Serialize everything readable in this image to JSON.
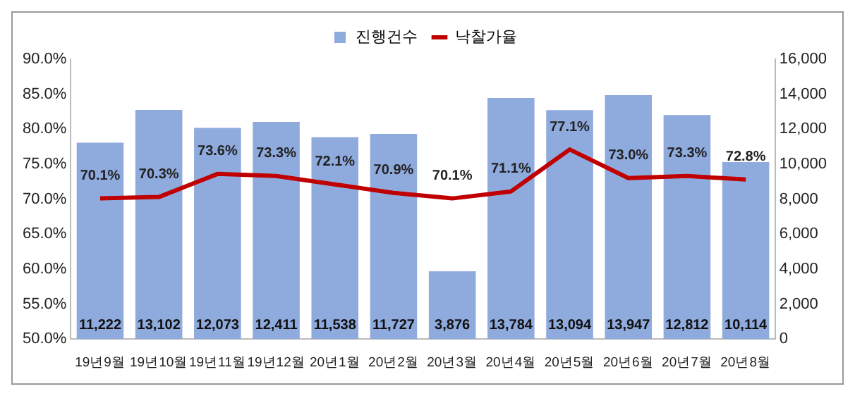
{
  "chart_data": {
    "type": "bar",
    "categories": [
      "19년9월",
      "19년10월",
      "19년11월",
      "19년12월",
      "20년1월",
      "20년2월",
      "20년3월",
      "20년4월",
      "20년5월",
      "20년6월",
      "20년7월",
      "20년8월"
    ],
    "series": [
      {
        "name": "진행건수",
        "type": "bar",
        "axis": "y2",
        "color": "#8faadc",
        "values": [
          11222,
          13102,
          12073,
          12411,
          11538,
          11727,
          3876,
          13784,
          13094,
          13947,
          12812,
          10114
        ],
        "value_labels": [
          "11,222",
          "13,102",
          "12,073",
          "12,411",
          "11,538",
          "11,727",
          "3,876",
          "13,784",
          "13,094",
          "13,947",
          "12,812",
          "10,114"
        ]
      },
      {
        "name": "낙찰가율",
        "type": "line",
        "axis": "y",
        "color": "#c00000",
        "values": [
          70.1,
          70.3,
          73.6,
          73.3,
          72.1,
          70.9,
          70.1,
          71.1,
          77.1,
          73.0,
          73.3,
          72.8
        ],
        "value_labels": [
          "70.1%",
          "70.3%",
          "73.6%",
          "73.3%",
          "72.1%",
          "70.9%",
          "70.1%",
          "71.1%",
          "77.1%",
          "73.0%",
          "73.3%",
          "72.8%"
        ]
      }
    ],
    "ylim": [
      50,
      90
    ],
    "yticks": [
      {
        "value": 50,
        "label": "50.0%"
      },
      {
        "value": 55,
        "label": "55.0%"
      },
      {
        "value": 60,
        "label": "60.0%"
      },
      {
        "value": 65,
        "label": "65.0%"
      },
      {
        "value": 70,
        "label": "70.0%"
      },
      {
        "value": 75,
        "label": "75.0%"
      },
      {
        "value": 80,
        "label": "80.0%"
      },
      {
        "value": 85,
        "label": "85.0%"
      },
      {
        "value": 90,
        "label": "90.0%"
      }
    ],
    "y2lim": [
      0,
      16000
    ],
    "y2ticks": [
      0,
      {
        "value": 2000,
        "label": "2,000"
      },
      {
        "value": 4000,
        "label": "4,000"
      },
      {
        "value": 6000,
        "label": "6,000"
      },
      {
        "value": 8000,
        "label": "8,000"
      },
      {
        "value": 10000,
        "label": "10,000"
      },
      {
        "value": 12000,
        "label": "12,000"
      },
      {
        "value": 14000,
        "label": "14,000"
      },
      {
        "value": 16000,
        "label": "16,000"
      }
    ],
    "legend": "top",
    "grid": false,
    "marker": "none",
    "line_style": "solid"
  }
}
